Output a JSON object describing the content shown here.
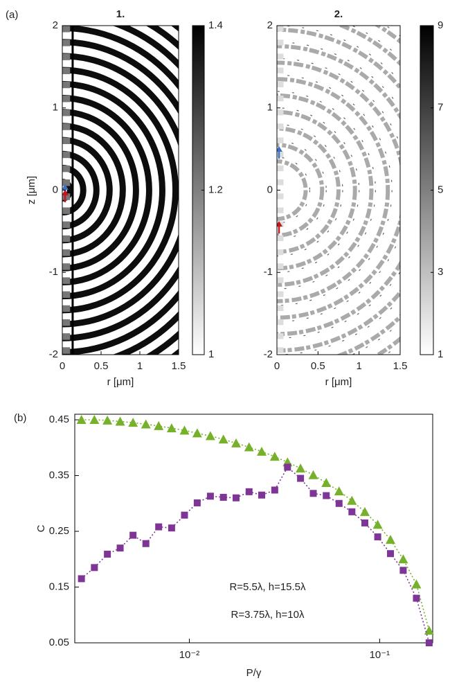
{
  "chart_data": [
    {
      "type": "heatmap",
      "panel": "(a)",
      "title": "1.",
      "xlabel": "r [μm]",
      "ylabel": "z [μm]",
      "xlim": [
        0,
        1.5
      ],
      "xticks": [
        0,
        0.5,
        1,
        1.5
      ],
      "ylim": [
        -2,
        2
      ],
      "yticks": [
        -2,
        -1,
        0,
        1,
        2
      ],
      "colormap": "gray_r",
      "colorbar_lim": [
        1,
        1.4
      ],
      "colorbar_ticks": [
        1,
        1.2,
        1.4
      ]
    },
    {
      "type": "heatmap",
      "title": "2.",
      "xlabel": "r [μm]",
      "xlim": [
        0,
        1.5
      ],
      "xticks": [
        0,
        0.5,
        1,
        1.5
      ],
      "ylim": [
        -2,
        2
      ],
      "yticks": [
        -2,
        -1,
        0,
        1,
        2
      ],
      "colormap": "gray_r",
      "colorbar_lim": [
        1,
        9
      ],
      "colorbar_ticks": [
        1,
        3,
        5,
        7,
        9
      ]
    },
    {
      "type": "line",
      "panel": "(b)",
      "xlabel": "P/γ",
      "ylabel": "C",
      "xscale": "log",
      "xlim": [
        0.0025,
        0.19
      ],
      "xticks": [
        {
          "value": 0.01,
          "label": "10⁻²"
        },
        {
          "value": 0.1,
          "label": "10⁻¹"
        }
      ],
      "ylim": [
        0.05,
        0.46
      ],
      "yticks": [
        0.05,
        0.15,
        0.25,
        0.35,
        0.45
      ],
      "legend": "lower center",
      "x": [
        0.00271,
        0.00317,
        0.00371,
        0.00433,
        0.00506,
        0.00591,
        0.0069,
        0.00807,
        0.00943,
        0.011,
        0.0129,
        0.0151,
        0.0176,
        0.0206,
        0.024,
        0.0281,
        0.0328,
        0.0384,
        0.0448,
        0.0524,
        0.0612,
        0.0715,
        0.0836,
        0.0977,
        0.114,
        0.133,
        0.156,
        0.182
      ],
      "series": [
        {
          "name": "R=5.5λ, h=15.5λ",
          "color": "#77b02a",
          "marker": "triangle",
          "values": [
            0.45,
            0.45,
            0.449,
            0.447,
            0.445,
            0.442,
            0.439,
            0.435,
            0.431,
            0.426,
            0.421,
            0.415,
            0.408,
            0.401,
            0.393,
            0.384,
            0.374,
            0.363,
            0.351,
            0.337,
            0.322,
            0.305,
            0.285,
            0.262,
            0.235,
            0.2,
            0.155,
            0.072
          ]
        },
        {
          "name": "R=3.75λ, h=10λ",
          "color": "#7e3596",
          "marker": "square",
          "values": [
            0.165,
            0.185,
            0.209,
            0.22,
            0.243,
            0.228,
            0.258,
            0.256,
            0.279,
            0.301,
            0.313,
            0.311,
            0.31,
            0.321,
            0.315,
            0.324,
            0.365,
            0.345,
            0.318,
            0.314,
            0.3,
            0.285,
            0.265,
            0.24,
            0.21,
            0.18,
            0.13,
            0.05
          ]
        }
      ]
    }
  ]
}
